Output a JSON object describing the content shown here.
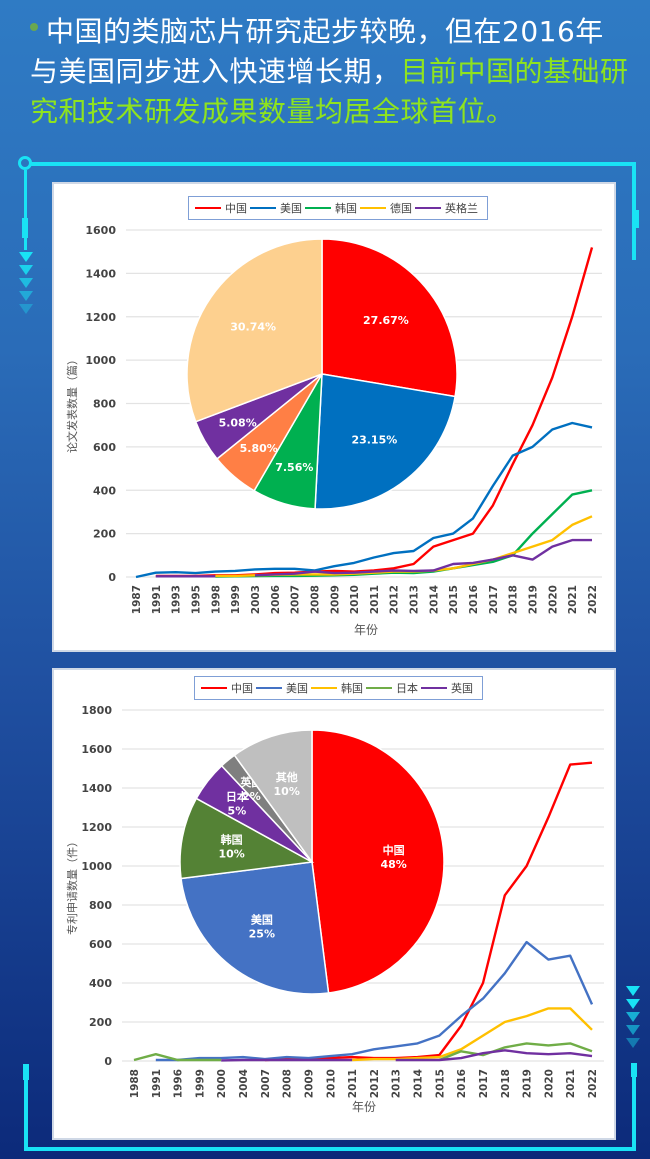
{
  "headline": {
    "normal": "中国的类脑芯片研究起步较晚，但在2016年与美国同步进入快速增长期，",
    "highlight": "目前中国的基础研究和技术研发成果数量均居全球首位。"
  },
  "chart_data": [
    {
      "type": "line",
      "title": "",
      "xlabel": "年份",
      "ylabel": "论文发表数量（篇）",
      "ylim": [
        0,
        1600
      ],
      "yticks": [
        0,
        200,
        400,
        600,
        800,
        1000,
        1200,
        1400,
        1600
      ],
      "grid": true,
      "legend_position": "top",
      "x": [
        "1987",
        "1991",
        "1993",
        "1995",
        "1998",
        "1999",
        "2003",
        "2006",
        "2007",
        "2008",
        "2009",
        "2010",
        "2011",
        "2012",
        "2013",
        "2014",
        "2015",
        "2016",
        "2017",
        "2018",
        "2019",
        "2020",
        "2021",
        "2022"
      ],
      "series": [
        {
          "name": "中国",
          "color": "#ff0000",
          "values": [
            null,
            5,
            5,
            5,
            8,
            8,
            12,
            18,
            20,
            25,
            28,
            25,
            30,
            40,
            60,
            140,
            170,
            200,
            330,
            520,
            700,
            920,
            1200,
            1520
          ]
        },
        {
          "name": "美国",
          "color": "#0070c0",
          "values": [
            0,
            20,
            22,
            18,
            25,
            28,
            35,
            38,
            38,
            30,
            50,
            65,
            90,
            110,
            120,
            180,
            200,
            270,
            420,
            560,
            600,
            680,
            710,
            690
          ]
        },
        {
          "name": "韩国",
          "color": "#00b050",
          "values": [
            null,
            null,
            null,
            null,
            2,
            3,
            4,
            5,
            5,
            6,
            8,
            10,
            15,
            20,
            18,
            25,
            40,
            55,
            70,
            100,
            200,
            290,
            380,
            400
          ]
        },
        {
          "name": "德国",
          "color": "#ffc000",
          "values": [
            null,
            null,
            null,
            null,
            5,
            5,
            8,
            10,
            12,
            12,
            12,
            15,
            20,
            25,
            25,
            30,
            40,
            60,
            80,
            110,
            140,
            170,
            240,
            280
          ]
        },
        {
          "name": "英格兰",
          "color": "#7030a0",
          "values": [
            null,
            3,
            3,
            3,
            3,
            null,
            8,
            12,
            15,
            25,
            18,
            20,
            25,
            30,
            28,
            30,
            60,
            65,
            80,
            100,
            80,
            140,
            170,
            170
          ]
        }
      ],
      "inset_pie": {
        "slices": [
          {
            "label": "27.67%",
            "value": 27.67,
            "color": "#ff0000"
          },
          {
            "label": "23.15%",
            "value": 23.15,
            "color": "#0070c0"
          },
          {
            "label": "7.56%",
            "value": 7.56,
            "color": "#00b050"
          },
          {
            "label": "5.80%",
            "value": 5.8,
            "color": "#ff7f45"
          },
          {
            "label": "5.08%",
            "value": 5.08,
            "color": "#7030a0"
          },
          {
            "label": "30.74%",
            "value": 30.74,
            "color": "#fdd08f"
          }
        ]
      }
    },
    {
      "type": "line",
      "title": "",
      "xlabel": "年份",
      "ylabel": "专利申请数量（件）",
      "ylim": [
        0,
        1800
      ],
      "yticks": [
        0,
        200,
        400,
        600,
        800,
        1000,
        1200,
        1400,
        1600,
        1800
      ],
      "grid": true,
      "legend_position": "top",
      "x": [
        "1988",
        "1991",
        "1996",
        "1999",
        "2000",
        "2004",
        "2007",
        "2008",
        "2009",
        "2010",
        "2011",
        "2012",
        "2013",
        "2014",
        "2015",
        "2016",
        "2017",
        "2018",
        "2019",
        "2020",
        "2021",
        "2022"
      ],
      "series": [
        {
          "name": "中国",
          "color": "#ff0000",
          "values": [
            null,
            null,
            null,
            null,
            null,
            null,
            5,
            10,
            10,
            15,
            20,
            15,
            15,
            20,
            30,
            180,
            400,
            850,
            1000,
            1250,
            1520,
            1530
          ]
        },
        {
          "name": "美国",
          "color": "#4472c4",
          "values": [
            null,
            5,
            5,
            15,
            15,
            20,
            10,
            20,
            15,
            25,
            35,
            60,
            75,
            90,
            130,
            230,
            320,
            450,
            610,
            520,
            540,
            290
          ]
        },
        {
          "name": "韩国",
          "color": "#ffc000",
          "values": [
            null,
            null,
            null,
            null,
            null,
            null,
            null,
            null,
            null,
            null,
            5,
            10,
            10,
            15,
            20,
            60,
            130,
            200,
            230,
            270,
            270,
            160
          ]
        },
        {
          "name": "日本",
          "color": "#70ad47",
          "values": [
            5,
            35,
            5,
            5,
            5,
            null,
            null,
            null,
            null,
            null,
            null,
            null,
            null,
            null,
            5,
            50,
            30,
            70,
            90,
            80,
            90,
            50
          ]
        },
        {
          "name": "英国",
          "color": "#7030a0",
          "values": [
            null,
            null,
            null,
            null,
            3,
            5,
            5,
            5,
            5,
            5,
            5,
            null,
            5,
            5,
            5,
            15,
            40,
            55,
            40,
            35,
            40,
            25
          ]
        }
      ],
      "inset_pie": {
        "slices": [
          {
            "label": "中国\n48%",
            "value": 48,
            "color": "#ff0000"
          },
          {
            "label": "美国\n25%",
            "value": 25,
            "color": "#4472c4"
          },
          {
            "label": "韩国\n10%",
            "value": 10,
            "color": "#548235"
          },
          {
            "label": "日本\n5%",
            "value": 5,
            "color": "#7030a0"
          },
          {
            "label": "英国\n2%",
            "value": 2,
            "color": "#7f7f7f"
          },
          {
            "label": "其他\n10%",
            "value": 10,
            "color": "#bfbfbf"
          }
        ]
      }
    }
  ]
}
